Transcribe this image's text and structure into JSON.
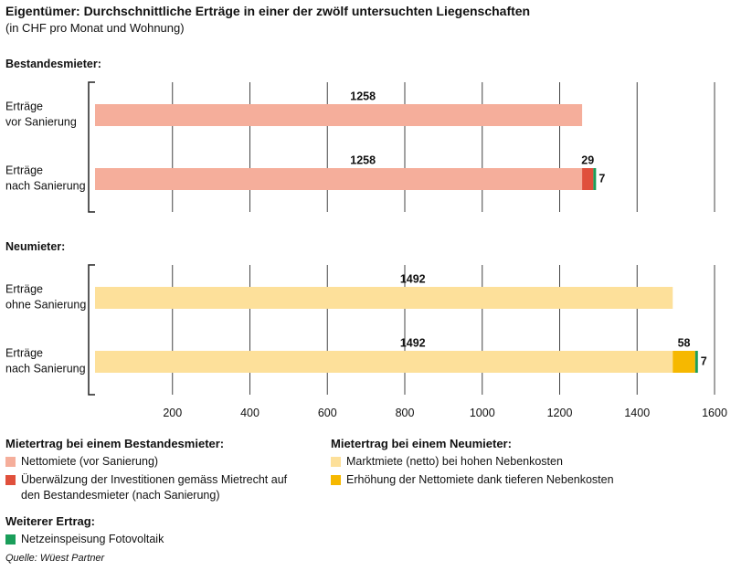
{
  "title": "Eigentümer: Durchschnittliche Erträge in einer der zwölf untersuchten Liegenschaften",
  "subtitle": "(in CHF pro Monat und Wohnung)",
  "source": "Quelle: Wüest Partner",
  "chart_data": [
    {
      "type": "bar",
      "orientation": "horizontal",
      "stacked": true,
      "panel_title": "Bestandesmieter:",
      "legend_title": "Mietertrag bei einem Bestandesmieter:",
      "categories": [
        "Erträge\nvor Sanierung",
        "Erträge\nnach Sanierung"
      ],
      "series": [
        {
          "name": "Nettomiete (vor Sanierung)",
          "color": "#f5ae9b",
          "values": [
            1258,
            1258
          ]
        },
        {
          "name": "Überwälzung der Investitionen gemäss Mietrecht auf den Bestandesmieter (nach Sanierung)",
          "color": "#e0503c",
          "values": [
            null,
            29
          ]
        },
        {
          "name": "Netzeinspeisung Fotovoltaik",
          "legend_title": "Weiterer Ertrag:",
          "color": "#1a9e5a",
          "values": [
            null,
            7
          ]
        }
      ],
      "xlim": [
        0,
        1600
      ],
      "xticks": [
        200,
        400,
        600,
        800,
        1000,
        1200,
        1400,
        1600
      ],
      "grid": true
    },
    {
      "type": "bar",
      "orientation": "horizontal",
      "stacked": true,
      "panel_title": "Neumieter:",
      "legend_title": "Mietertrag bei einem Neumieter:",
      "categories": [
        "Erträge\nohne Sanierung",
        "Erträge\nnach Sanierung"
      ],
      "series": [
        {
          "name": "Marktmiete (netto) bei hohen Nebenkosten",
          "color": "#fde09a",
          "values": [
            1492,
            1492
          ]
        },
        {
          "name": "Erhöhung der Nettomiete dank tieferen Nebenkosten",
          "color": "#f6b800",
          "values": [
            null,
            58
          ]
        },
        {
          "color": "#1a9e5a",
          "values": [
            null,
            7
          ]
        }
      ],
      "xlim": [
        0,
        1600
      ],
      "xticks": [
        200,
        400,
        600,
        800,
        1000,
        1200,
        1400,
        1600
      ],
      "grid": true
    }
  ]
}
